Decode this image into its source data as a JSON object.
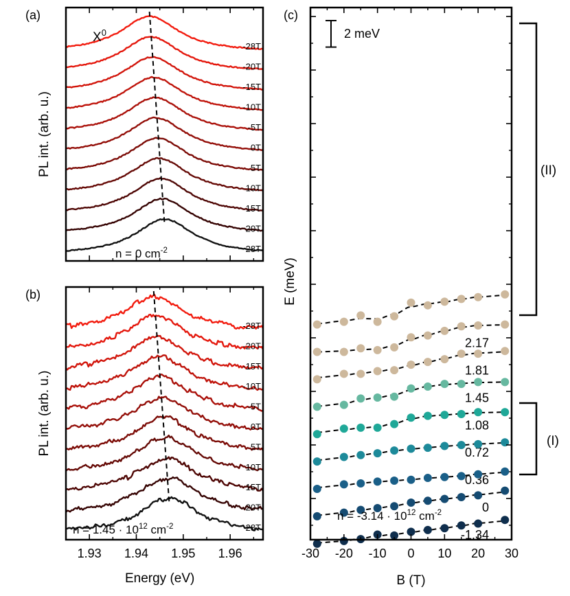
{
  "chart_data": [
    {
      "panel": "(a)",
      "type": "line",
      "title": "X0",
      "title_base": "X",
      "title_sup": "0",
      "ylabel": "PL int. (arb. u.)",
      "xlabel": "",
      "xlim": [
        1.925,
        1.967
      ],
      "note_text": "n = 0 cm",
      "note_sup": "-2",
      "series_labels": [
        "-28T",
        "-20T",
        "-15T",
        "-10T",
        "-5T",
        "0T",
        "5T",
        "10T",
        "15T",
        "20T",
        "28T"
      ],
      "series_colors": [
        "#f21a0d",
        "#e4170c",
        "#d2150b",
        "#bf130a",
        "#aa1009",
        "#930e08",
        "#7c0b06",
        "#650905",
        "#4e0604",
        "#350302",
        "#111111"
      ],
      "peak_energy_eV": [
        1.9428,
        1.9431,
        1.9434,
        1.9437,
        1.944,
        1.9442,
        1.9445,
        1.9448,
        1.9452,
        1.9455,
        1.946
      ],
      "noise": 0.8,
      "dashed_line": "peak shift"
    },
    {
      "panel": "(b)",
      "type": "line",
      "ylabel": "PL int. (arb. u.)",
      "xlabel": "Energy (eV)",
      "xlim": [
        1.925,
        1.967
      ],
      "xticks": [
        1.93,
        1.94,
        1.95,
        1.96
      ],
      "xtick_labels": [
        "1.93",
        "1.94",
        "1.95",
        "1.96"
      ],
      "note_text": "n = 1.45 · 10",
      "note_sup1": "12",
      "note_mid": " cm",
      "note_sup2": "-2",
      "series_labels": [
        "-28T",
        "-20T",
        "-15T",
        "-10T",
        "-5T",
        "0T",
        "5T",
        "10T",
        "15T",
        "20T",
        "28T"
      ],
      "series_colors": [
        "#f21a0d",
        "#e4170c",
        "#d2150b",
        "#bf130a",
        "#aa1009",
        "#930e08",
        "#7c0b06",
        "#650905",
        "#4e0604",
        "#350302",
        "#111111"
      ],
      "peak_energy_eV": [
        1.9437,
        1.944,
        1.9443,
        1.9447,
        1.9451,
        1.9455,
        1.9459,
        1.9462,
        1.9465,
        1.9468,
        1.947
      ],
      "noise": 2.0,
      "dashed_line": "peak shift"
    },
    {
      "panel": "(c)",
      "type": "scatter",
      "xlabel": "B (T)",
      "ylabel": "E (meV)",
      "xlim": [
        -30,
        30
      ],
      "xticks": [
        -30,
        -20,
        -10,
        0,
        10,
        20,
        30
      ],
      "xtick_labels": [
        "-30",
        "-20",
        "-10",
        "0",
        "10",
        "20",
        "30"
      ],
      "scale_bar_label": "2 meV",
      "scale_bar_meV": 2,
      "note_text": "n = -3.14 · 10",
      "note_sup1": "12",
      "note_mid": " cm",
      "note_sup2": "-2",
      "bracket_labels": {
        "upper": "(II)",
        "lower": "(I)"
      },
      "x": [
        -28,
        -20,
        -15,
        -10,
        -5,
        0,
        5,
        10,
        15,
        20,
        28
      ],
      "series": [
        {
          "name": "2.17",
          "color": "#cdb89c",
          "offset_meV": 18.6,
          "values": [
            0.0,
            0.3,
            1.0,
            0.3,
            0.9,
            2.4,
            2.1,
            2.5,
            2.8,
            3.0,
            3.3
          ]
        },
        {
          "name": "1.81",
          "color": "#cdb89c",
          "offset_meV": 15.6,
          "values": [
            0.0,
            0.0,
            0.4,
            0.2,
            0.5,
            1.6,
            1.8,
            2.3,
            2.8,
            2.9,
            3.0
          ]
        },
        {
          "name": "1.45",
          "color": "#cdb89c",
          "offset_meV": 12.6,
          "values": [
            0.0,
            0.6,
            0.6,
            0.9,
            1.0,
            1.6,
            1.9,
            2.2,
            2.8,
            2.8,
            3.1
          ]
        },
        {
          "name": "1.08",
          "color": "#66b8a0",
          "offset_meV": 9.6,
          "values": [
            0.0,
            0.2,
            0.9,
            1.0,
            1.1,
            2.0,
            2.2,
            2.5,
            2.5,
            2.7,
            2.7
          ]
        },
        {
          "name": "0.72",
          "color": "#1fa898",
          "offset_meV": 6.6,
          "values": [
            0.0,
            0.6,
            0.7,
            0.7,
            1.1,
            1.8,
            2.0,
            2.1,
            2.2,
            2.4,
            2.4
          ]
        },
        {
          "name": "0.36",
          "color": "#1d8a9a",
          "offset_meV": 3.6,
          "values": [
            0.0,
            0.5,
            0.7,
            0.9,
            1.2,
            1.4,
            1.5,
            1.7,
            1.8,
            1.9,
            2.1
          ]
        },
        {
          "name": "0",
          "color": "#1a5f88",
          "offset_meV": 0.6,
          "values": [
            0.0,
            0.5,
            0.6,
            0.8,
            0.9,
            1.0,
            1.2,
            1.3,
            1.4,
            1.6,
            1.9
          ]
        },
        {
          "name": "-1.34",
          "color": "#154b72",
          "offset_meV": -2.4,
          "values": [
            0.0,
            0.4,
            0.7,
            0.9,
            1.1,
            1.5,
            1.7,
            1.9,
            2.1,
            2.3,
            2.8
          ]
        },
        {
          "name": "-3.14",
          "color": "#0f2e4d",
          "offset_meV": -5.4,
          "values": [
            0.0,
            0.3,
            0.5,
            1.0,
            0.9,
            1.3,
            1.5,
            1.7,
            2.0,
            2.2,
            2.6
          ]
        }
      ]
    }
  ]
}
